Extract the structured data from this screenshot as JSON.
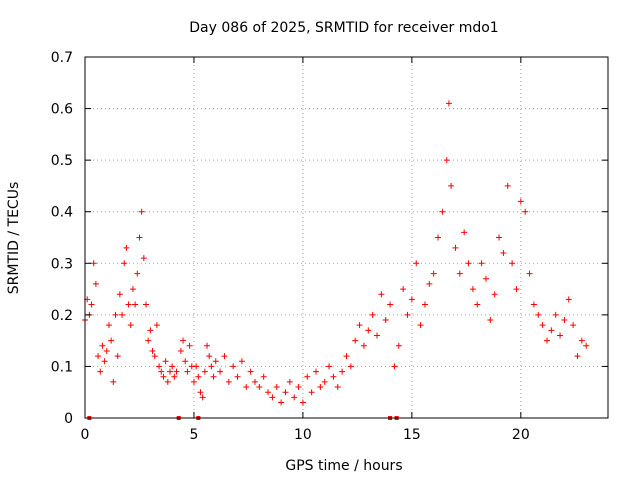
{
  "chart_data": {
    "type": "scatter",
    "title": "Day 086 of 2025, SRMTID for receiver mdo1",
    "xlabel": "GPS time / hours",
    "ylabel": "SRMTID / TECUs",
    "xlim": [
      0,
      24
    ],
    "ylim": [
      0,
      0.7
    ],
    "xticks": [
      0,
      5,
      10,
      15,
      20
    ],
    "xtick_labels": [
      "0",
      "5",
      "10",
      "15",
      "20"
    ],
    "yticks": [
      0,
      0.1,
      0.2,
      0.3,
      0.4,
      0.5,
      0.6,
      0.7
    ],
    "ytick_labels": [
      "0",
      "0.1",
      "0.2",
      "0.3",
      "0.4",
      "0.5",
      "0.6",
      "0.7"
    ],
    "grid": true,
    "marker": "+",
    "color": "#ff0000",
    "series": [
      {
        "name": "SRMTID",
        "points": [
          [
            0.0,
            0.19
          ],
          [
            0.1,
            0.23
          ],
          [
            0.2,
            0.2
          ],
          [
            0.3,
            0.22
          ],
          [
            0.4,
            0.3
          ],
          [
            0.5,
            0.26
          ],
          [
            0.6,
            0.12
          ],
          [
            0.7,
            0.09
          ],
          [
            0.8,
            0.14
          ],
          [
            0.9,
            0.11
          ],
          [
            1.0,
            0.13
          ],
          [
            1.1,
            0.18
          ],
          [
            1.2,
            0.15
          ],
          [
            1.3,
            0.07
          ],
          [
            1.4,
            0.2
          ],
          [
            1.5,
            0.12
          ],
          [
            1.6,
            0.24
          ],
          [
            1.7,
            0.2
          ],
          [
            1.8,
            0.3
          ],
          [
            1.9,
            0.33
          ],
          [
            2.0,
            0.22
          ],
          [
            2.1,
            0.18
          ],
          [
            2.2,
            0.25
          ],
          [
            2.3,
            0.22
          ],
          [
            2.4,
            0.28
          ],
          [
            2.5,
            0.35
          ],
          [
            2.6,
            0.4
          ],
          [
            2.7,
            0.31
          ],
          [
            2.8,
            0.22
          ],
          [
            2.9,
            0.15
          ],
          [
            3.0,
            0.17
          ],
          [
            3.1,
            0.13
          ],
          [
            3.2,
            0.12
          ],
          [
            3.3,
            0.18
          ],
          [
            3.4,
            0.1
          ],
          [
            3.5,
            0.09
          ],
          [
            3.6,
            0.08
          ],
          [
            3.7,
            0.11
          ],
          [
            3.8,
            0.07
          ],
          [
            3.9,
            0.09
          ],
          [
            4.0,
            0.1
          ],
          [
            4.1,
            0.08
          ],
          [
            4.2,
            0.09
          ],
          [
            4.4,
            0.13
          ],
          [
            4.5,
            0.15
          ],
          [
            4.6,
            0.11
          ],
          [
            4.7,
            0.09
          ],
          [
            4.8,
            0.14
          ],
          [
            4.9,
            0.1
          ],
          [
            5.0,
            0.07
          ],
          [
            5.1,
            0.1
          ],
          [
            5.2,
            0.08
          ],
          [
            5.3,
            0.05
          ],
          [
            5.4,
            0.04
          ],
          [
            5.5,
            0.09
          ],
          [
            5.6,
            0.14
          ],
          [
            5.7,
            0.12
          ],
          [
            5.8,
            0.1
          ],
          [
            5.9,
            0.08
          ],
          [
            6.0,
            0.11
          ],
          [
            6.2,
            0.09
          ],
          [
            6.4,
            0.12
          ],
          [
            6.6,
            0.07
          ],
          [
            6.8,
            0.1
          ],
          [
            7.0,
            0.08
          ],
          [
            7.2,
            0.11
          ],
          [
            7.4,
            0.06
          ],
          [
            7.6,
            0.09
          ],
          [
            7.8,
            0.07
          ],
          [
            8.0,
            0.06
          ],
          [
            8.2,
            0.08
          ],
          [
            8.4,
            0.05
          ],
          [
            8.6,
            0.04
          ],
          [
            8.8,
            0.06
          ],
          [
            9.0,
            0.03
          ],
          [
            9.2,
            0.05
          ],
          [
            9.4,
            0.07
          ],
          [
            9.6,
            0.04
          ],
          [
            9.8,
            0.06
          ],
          [
            10.0,
            0.03
          ],
          [
            10.2,
            0.08
          ],
          [
            10.4,
            0.05
          ],
          [
            10.6,
            0.09
          ],
          [
            10.8,
            0.06
          ],
          [
            11.0,
            0.07
          ],
          [
            11.2,
            0.1
          ],
          [
            11.4,
            0.08
          ],
          [
            11.6,
            0.06
          ],
          [
            11.8,
            0.09
          ],
          [
            12.0,
            0.12
          ],
          [
            12.2,
            0.1
          ],
          [
            12.4,
            0.15
          ],
          [
            12.6,
            0.18
          ],
          [
            12.8,
            0.14
          ],
          [
            13.0,
            0.17
          ],
          [
            13.2,
            0.2
          ],
          [
            13.4,
            0.16
          ],
          [
            13.6,
            0.24
          ],
          [
            13.8,
            0.19
          ],
          [
            14.0,
            0.22
          ],
          [
            14.2,
            0.1
          ],
          [
            14.4,
            0.14
          ],
          [
            14.6,
            0.25
          ],
          [
            14.8,
            0.2
          ],
          [
            15.0,
            0.23
          ],
          [
            15.2,
            0.3
          ],
          [
            15.4,
            0.18
          ],
          [
            15.6,
            0.22
          ],
          [
            15.8,
            0.26
          ],
          [
            16.0,
            0.28
          ],
          [
            16.2,
            0.35
          ],
          [
            16.4,
            0.4
          ],
          [
            16.6,
            0.5
          ],
          [
            16.7,
            0.61
          ],
          [
            16.8,
            0.45
          ],
          [
            17.0,
            0.33
          ],
          [
            17.2,
            0.28
          ],
          [
            17.4,
            0.36
          ],
          [
            17.6,
            0.3
          ],
          [
            17.8,
            0.25
          ],
          [
            18.0,
            0.22
          ],
          [
            18.2,
            0.3
          ],
          [
            18.4,
            0.27
          ],
          [
            18.6,
            0.19
          ],
          [
            18.8,
            0.24
          ],
          [
            19.0,
            0.35
          ],
          [
            19.2,
            0.32
          ],
          [
            19.4,
            0.45
          ],
          [
            19.6,
            0.3
          ],
          [
            19.8,
            0.25
          ],
          [
            20.0,
            0.42
          ],
          [
            20.2,
            0.4
          ],
          [
            20.4,
            0.28
          ],
          [
            20.6,
            0.22
          ],
          [
            20.8,
            0.2
          ],
          [
            21.0,
            0.18
          ],
          [
            21.2,
            0.15
          ],
          [
            21.4,
            0.17
          ],
          [
            21.6,
            0.2
          ],
          [
            21.8,
            0.16
          ],
          [
            22.0,
            0.19
          ],
          [
            22.2,
            0.23
          ],
          [
            22.4,
            0.18
          ],
          [
            22.6,
            0.12
          ],
          [
            22.8,
            0.15
          ],
          [
            23.0,
            0.14
          ]
        ]
      }
    ],
    "zero_points_x": [
      0.2,
      4.3,
      5.2,
      14.0,
      14.3
    ]
  }
}
